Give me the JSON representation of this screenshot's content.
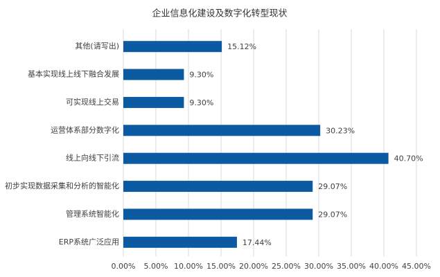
{
  "chart_data": {
    "type": "hbar",
    "title": "企业信息化建设及数字化转型现状",
    "categories": [
      "其他(请写出)",
      "基本实现线上线下融合发展",
      "可实现线上交易",
      "运营体系部分数字化",
      "线上向线下引流",
      "初步实现数据采集和分析的智能化",
      "管理系统智能化",
      "ERP系统广泛应用"
    ],
    "values": [
      15.12,
      9.3,
      9.3,
      30.23,
      40.7,
      29.07,
      29.07,
      17.44
    ],
    "value_labels": [
      "15.12%",
      "9.30%",
      "9.30%",
      "30.23%",
      "40.70%",
      "29.07%",
      "29.07%",
      "17.44%"
    ],
    "color": "#0b5aa2",
    "xlim": [
      0,
      45
    ],
    "xticks": [
      {
        "value": 0,
        "label": "0.00%"
      },
      {
        "value": 5,
        "label": "5.00%"
      },
      {
        "value": 10,
        "label": "10.00%"
      },
      {
        "value": 15,
        "label": "15.00%"
      },
      {
        "value": 20,
        "label": "20.00%"
      },
      {
        "value": 25,
        "label": "25.00%"
      },
      {
        "value": 30,
        "label": "30.00%"
      },
      {
        "value": 35,
        "label": "35.00%"
      },
      {
        "value": 40,
        "label": "40.00%"
      },
      {
        "value": 45,
        "label": "45.00%"
      }
    ],
    "grid": true
  }
}
